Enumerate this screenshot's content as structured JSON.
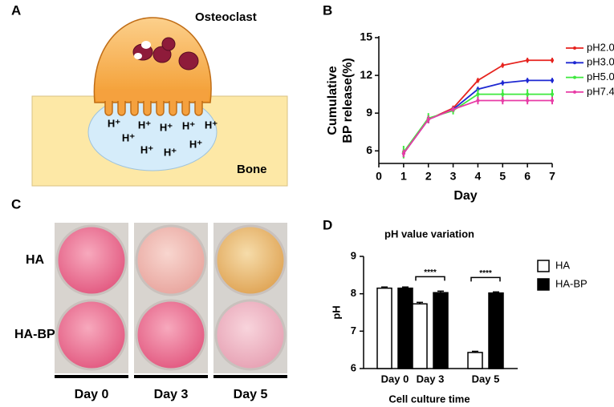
{
  "panel_labels": [
    "A",
    "B",
    "C",
    "D"
  ],
  "diagram": {
    "cell_label": "Osteoclast",
    "tissue_label": "Bone",
    "ion_labels": [
      "H⁺",
      "H⁺",
      "H⁺",
      "H⁺",
      "H⁺",
      "H⁺",
      "H⁺",
      "H⁺",
      "H⁺"
    ]
  },
  "photo": {
    "row_labels": [
      "HA",
      "HA-BP"
    ],
    "column_labels": [
      "Day 0",
      "Day 3",
      "Day 5"
    ]
  },
  "chart_data": [
    {
      "type": "line",
      "y_label": [
        "Cumulative",
        "BP release(%)"
      ],
      "x_label": "Day",
      "x": [
        1,
        2,
        3,
        4,
        5,
        6,
        7
      ],
      "xlim": [
        0,
        7
      ],
      "xticks": [
        0,
        1,
        2,
        3,
        4,
        5,
        6,
        7
      ],
      "ylim": [
        5,
        15
      ],
      "yticks": [
        6,
        9,
        12,
        15
      ],
      "legend": "right",
      "series": [
        {
          "name": "pH2.0",
          "color": "#e6231e",
          "values": [
            5.8,
            8.5,
            9.4,
            11.6,
            12.8,
            13.2,
            13.2
          ],
          "errors": [
            0.3,
            0.3,
            0.2,
            0.2,
            0.2,
            0.2,
            0.2
          ]
        },
        {
          "name": "pH3.0",
          "color": "#1e28d2",
          "values": [
            5.8,
            8.5,
            9.3,
            10.9,
            11.4,
            11.6,
            11.6
          ],
          "errors": [
            0.3,
            0.3,
            0.2,
            0.2,
            0.2,
            0.2,
            0.2
          ]
        },
        {
          "name": "pH5.0",
          "color": "#3ee83e",
          "values": [
            5.9,
            8.6,
            9.2,
            10.5,
            10.5,
            10.5,
            10.5
          ],
          "errors": [
            0.5,
            0.4,
            0.3,
            0.4,
            0.4,
            0.4,
            0.4
          ]
        },
        {
          "name": "pH7.4",
          "color": "#e83ca6",
          "values": [
            5.8,
            8.5,
            9.3,
            10.0,
            10.0,
            10.0,
            10.0
          ],
          "errors": [
            0.3,
            0.3,
            0.2,
            0.3,
            0.3,
            0.3,
            0.3
          ]
        }
      ]
    },
    {
      "type": "bar",
      "title": "pH value variation",
      "x_label": "Cell culture time",
      "y_label": "pH",
      "categories": [
        "Day 0",
        "Day 3",
        "Day 5"
      ],
      "ylim": [
        6,
        9
      ],
      "yticks": [
        6,
        7,
        8,
        9
      ],
      "legend": "right",
      "series": [
        {
          "name": "HA",
          "color": "#ffffff",
          "values": [
            8.15,
            7.73,
            6.43
          ],
          "errors": [
            0.03,
            0.04,
            0.03
          ]
        },
        {
          "name": "HA-BP",
          "color": "#000000",
          "values": [
            8.15,
            8.03,
            8.02
          ],
          "errors": [
            0.03,
            0.04,
            0.03
          ]
        }
      ],
      "annotations": [
        {
          "text": "****",
          "x": "Day 3"
        },
        {
          "text": "****",
          "x": "Day 5"
        }
      ]
    }
  ]
}
